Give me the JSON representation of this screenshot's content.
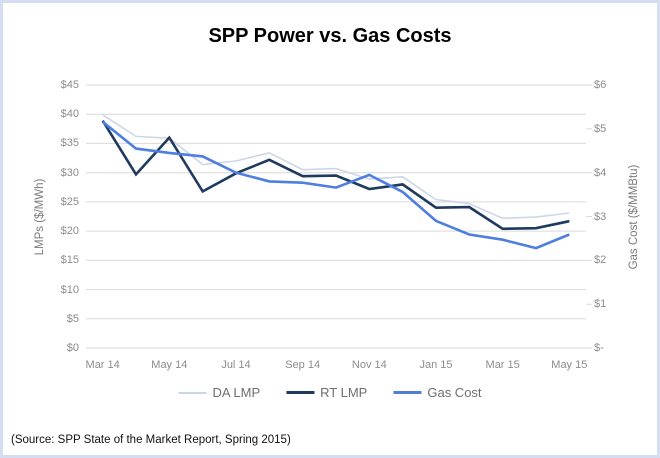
{
  "window": {
    "background": "#ffffff",
    "border_color": "#d5def1"
  },
  "chart_data": {
    "type": "line",
    "title": "SPP Power vs. Gas Costs",
    "categories": [
      "Mar 14",
      "Apr 14",
      "May 14",
      "Jun 14",
      "Jul 14",
      "Aug 14",
      "Sep 14",
      "Oct 14",
      "Nov 14",
      "Dec 14",
      "Jan 15",
      "Feb 15",
      "Mar 15",
      "Apr 15",
      "May 15"
    ],
    "x_tick_labels": [
      "Mar 14",
      "May 14",
      "Jul 14",
      "Sep 14",
      "Nov 14",
      "Jan 15",
      "Mar 15",
      "May 15"
    ],
    "series": [
      {
        "name": "DA LMP",
        "axis": "left",
        "color": "#cdd6e8",
        "stroke_width": 1.6,
        "values": [
          39.9,
          36.2,
          35.9,
          31.4,
          32.0,
          33.4,
          30.5,
          30.7,
          28.9,
          29.3,
          25.4,
          24.7,
          22.2,
          22.4,
          23.1
        ]
      },
      {
        "name": "RT LMP",
        "axis": "left",
        "color": "#1e3a5f",
        "stroke_width": 2.6,
        "values": [
          38.9,
          29.7,
          36.0,
          26.8,
          29.9,
          32.2,
          29.4,
          29.5,
          27.2,
          28.0,
          24.0,
          24.1,
          20.4,
          20.5,
          21.7
        ]
      },
      {
        "name": "Gas Cost",
        "axis": "right",
        "color": "#4d7ee0",
        "stroke_width": 2.6,
        "values": [
          5.16,
          4.55,
          4.45,
          4.37,
          4.0,
          3.8,
          3.77,
          3.66,
          3.95,
          3.56,
          2.9,
          2.59,
          2.47,
          2.28,
          2.59
        ]
      }
    ],
    "left_axis": {
      "label": "LMPs ($/MWh)",
      "min": 0,
      "max": 45,
      "step": 5,
      "tick_labels": [
        "$0",
        "$5",
        "$10",
        "$15",
        "$20",
        "$25",
        "$30",
        "$35",
        "$40",
        "$45"
      ]
    },
    "right_axis": {
      "label": "Gas Cost ($/MMBtu)",
      "min": 0,
      "max": 6,
      "step": 1,
      "tick_labels": [
        "$-",
        "$1",
        "$2",
        "$3",
        "$4",
        "$5",
        "$6"
      ]
    },
    "grid": true,
    "legend_position": "bottom"
  },
  "colors": {
    "gridline": "#d9d9d9",
    "tick_text": "#8c8c8c",
    "axis_title_text": "#7a7a7a",
    "legend_text": "#6e6e6e",
    "title_text": "#000000",
    "source_text": "#111111"
  },
  "source_note": "(Source: SPP State of the Market Report, Spring 2015)"
}
